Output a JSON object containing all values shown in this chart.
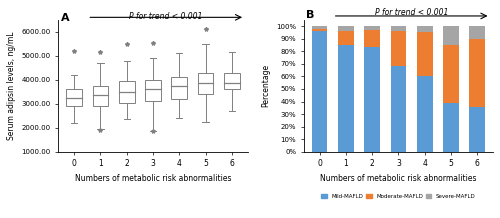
{
  "panel_A": {
    "title": "A",
    "trend_text": "P for trend < 0.001",
    "ylabel": "Serum adipsin levels, ng/mL",
    "xlabel": "Numbers of metabolic risk abnormalities",
    "categories": [
      0,
      1,
      2,
      3,
      4,
      5,
      6
    ],
    "ylim": [
      1000,
      6500
    ],
    "yticks": [
      1000,
      2000,
      3000,
      4000,
      5000,
      6000
    ],
    "ytick_labels": [
      "1000.00",
      "2000.00",
      "3000.00",
      "4000.00",
      "5000.00",
      "6000.00"
    ],
    "boxes": [
      {
        "q1": 2900,
        "median": 3250,
        "q3": 3600,
        "whisker_low": 2200,
        "whisker_high": 4200,
        "fliers_high": [
          5200
        ],
        "fliers_low": []
      },
      {
        "q1": 2900,
        "median": 3350,
        "q3": 3750,
        "whisker_low": 1950,
        "whisker_high": 4700,
        "fliers_high": [
          5150
        ],
        "fliers_low": [
          1900
        ]
      },
      {
        "q1": 3050,
        "median": 3500,
        "q3": 3950,
        "whisker_low": 2350,
        "whisker_high": 4800,
        "fliers_high": [
          5500
        ],
        "fliers_low": []
      },
      {
        "q1": 3100,
        "median": 3600,
        "q3": 4000,
        "whisker_low": 1850,
        "whisker_high": 4900,
        "fliers_high": [
          5550
        ],
        "fliers_low": [
          1850
        ]
      },
      {
        "q1": 3200,
        "median": 3750,
        "q3": 4100,
        "whisker_low": 2400,
        "whisker_high": 5100,
        "fliers_high": [],
        "fliers_low": []
      },
      {
        "q1": 3400,
        "median": 3850,
        "q3": 4300,
        "whisker_low": 2250,
        "whisker_high": 5500,
        "fliers_high": [
          6100
        ],
        "fliers_low": []
      },
      {
        "q1": 3600,
        "median": 3850,
        "q3": 4300,
        "whisker_low": 2700,
        "whisker_high": 5150,
        "fliers_high": [],
        "fliers_low": []
      }
    ]
  },
  "panel_B": {
    "title": "B",
    "trend_text": "P for trend < 0.001",
    "ylabel": "Percentage",
    "xlabel": "Numbers of metabolic risk abnormalities",
    "categories": [
      0,
      1,
      2,
      3,
      4,
      5,
      6
    ],
    "mild": [
      96,
      85,
      83,
      68,
      60,
      39,
      36
    ],
    "moderate": [
      2,
      11,
      14,
      28,
      35,
      46,
      54
    ],
    "severe": [
      2,
      4,
      3,
      4,
      5,
      15,
      10
    ],
    "colors": {
      "mild": "#5B9BD5",
      "moderate": "#ED7D31",
      "severe": "#A5A5A5"
    },
    "ytick_labels": [
      "0%",
      "10%",
      "20%",
      "30%",
      "40%",
      "50%",
      "60%",
      "70%",
      "80%",
      "90%",
      "100%"
    ],
    "legend": [
      "Mild-MAFLD",
      "Moderate-MAFLD",
      "Severe-MAFLD"
    ]
  }
}
